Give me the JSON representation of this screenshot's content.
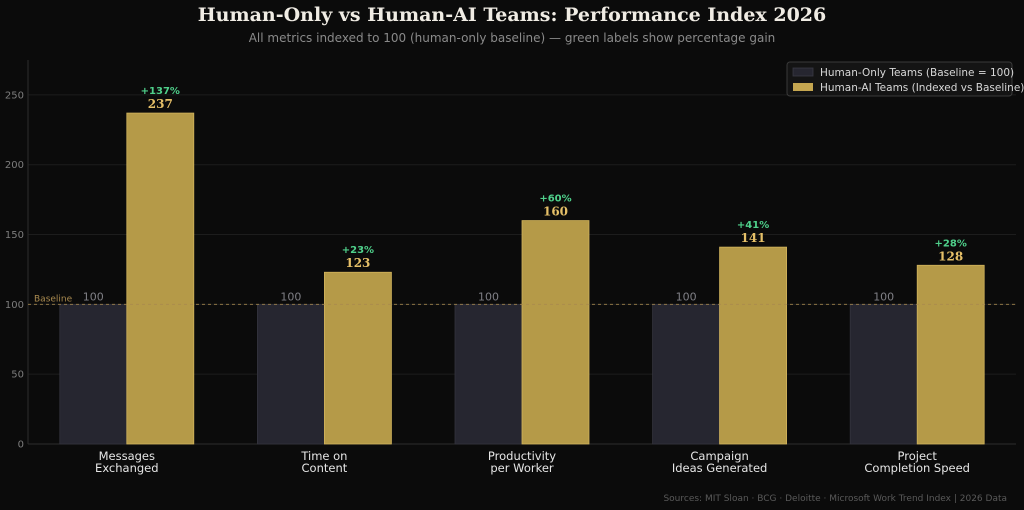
{
  "colors": {
    "background": "#0b0b0b",
    "baseline_bar": "#262630",
    "ai_bar": "#b59a48",
    "gain_label": "#4fd08b",
    "ai_value_label": "#e6c068",
    "baseline_line": "#a98a4f"
  },
  "chart_data": {
    "type": "bar",
    "title": "Human-Only vs Human-AI Teams: Performance Index 2026",
    "subtitle": "All metrics indexed to 100 (human-only baseline) — green labels show percentage gain",
    "categories": [
      [
        "Messages",
        "Exchanged"
      ],
      [
        "Time on",
        "Content"
      ],
      [
        "Productivity",
        "per Worker"
      ],
      [
        "Campaign",
        "Ideas Generated"
      ],
      [
        "Project",
        "Completion Speed"
      ]
    ],
    "series": [
      {
        "name": "Human-Only Teams (Baseline = 100)",
        "values": [
          100,
          100,
          100,
          100,
          100
        ]
      },
      {
        "name": "Human-AI Teams (Indexed vs Baseline)",
        "values": [
          237,
          123,
          160,
          141,
          128
        ]
      }
    ],
    "gain_labels": [
      "+137%",
      "+23%",
      "+60%",
      "+41%",
      "+28%"
    ],
    "baseline": {
      "value": 100,
      "label": "Baseline"
    },
    "ylim": [
      0,
      275
    ],
    "yticks": [
      0,
      50,
      100,
      150,
      200,
      250
    ],
    "grid": true,
    "legend_position": "top-right",
    "source": "Sources: MIT Sloan · BCG · Deloitte · Microsoft Work Trend Index  |  2026 Data"
  }
}
